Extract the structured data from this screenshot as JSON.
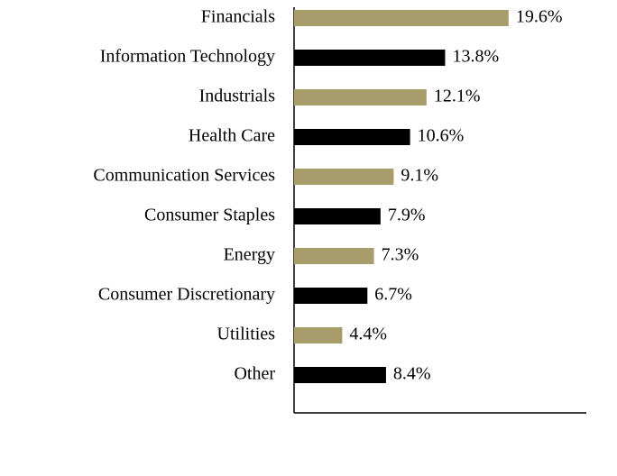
{
  "chart_data": {
    "type": "bar",
    "orientation": "horizontal",
    "categories": [
      "Financials",
      "Information Technology",
      "Industrials",
      "Health Care",
      "Communication Services",
      "Consumer Staples",
      "Energy",
      "Consumer Discretionary",
      "Utilities",
      "Other"
    ],
    "values": [
      19.6,
      13.8,
      12.1,
      10.6,
      9.1,
      7.9,
      7.3,
      6.7,
      4.4,
      8.4
    ],
    "value_labels": [
      "19.6%",
      "13.8%",
      "12.1%",
      "10.6%",
      "9.1%",
      "7.9%",
      "7.3%",
      "6.7%",
      "4.4%",
      "8.4%"
    ],
    "colors": [
      "#a99c6b",
      "#000000",
      "#a99c6b",
      "#000000",
      "#a99c6b",
      "#000000",
      "#a99c6b",
      "#000000",
      "#a99c6b",
      "#000000"
    ],
    "xlim": [
      0,
      26.7
    ]
  }
}
